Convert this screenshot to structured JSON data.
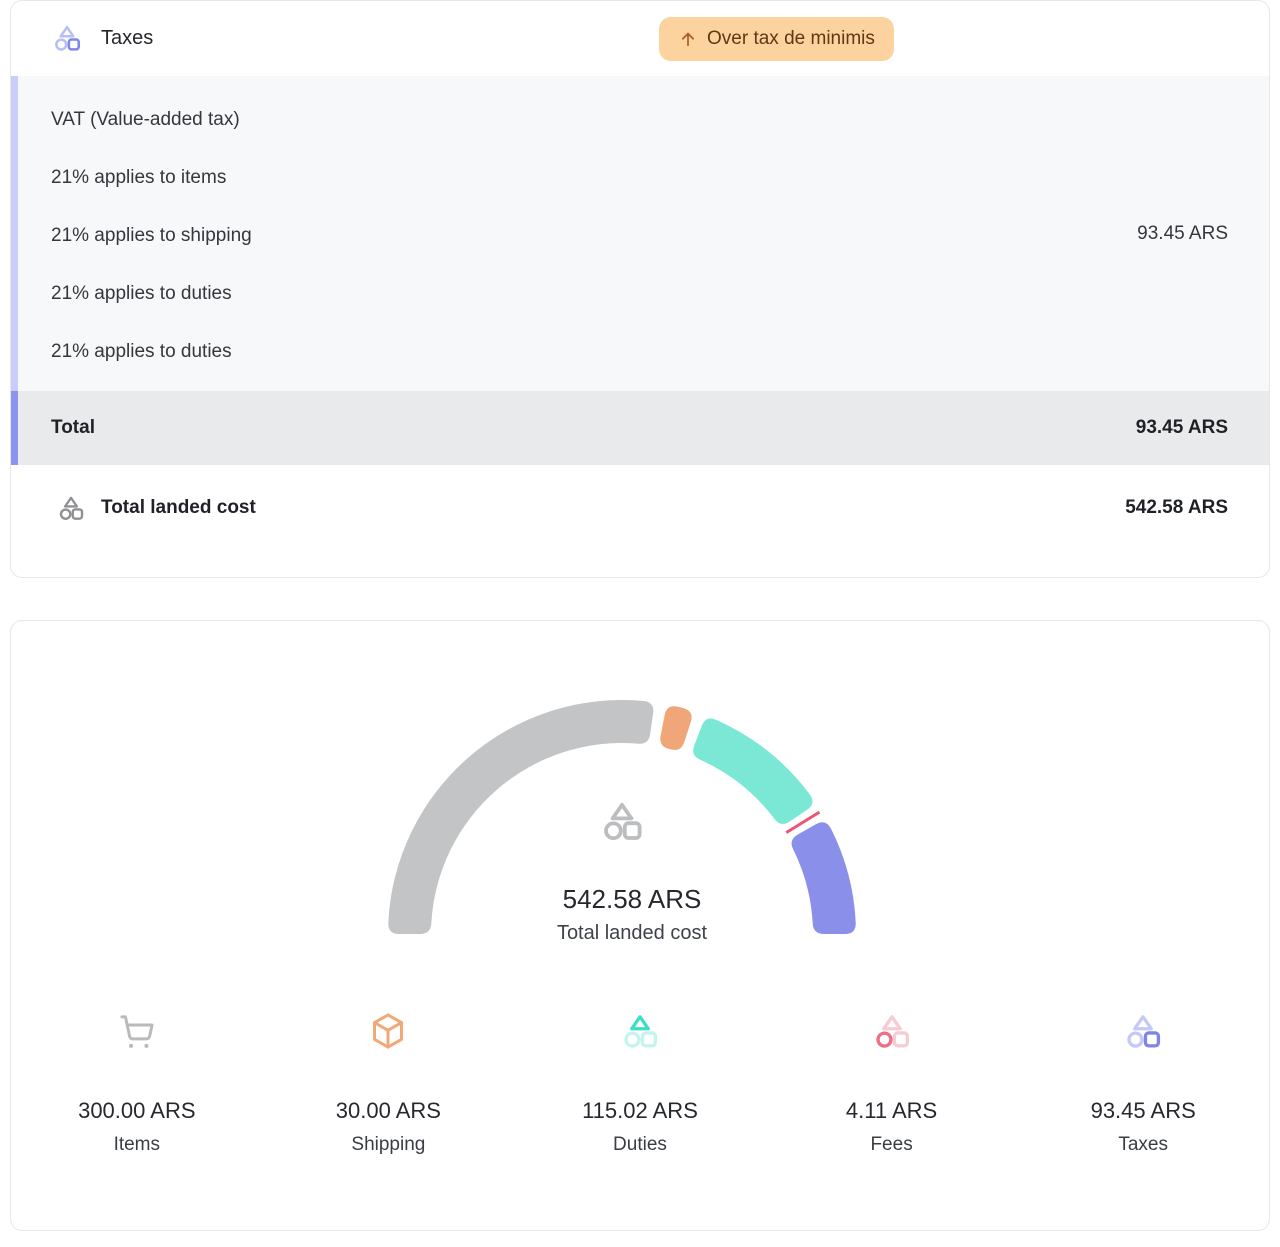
{
  "tax_card": {
    "header": {
      "title": "Taxes",
      "badge_label": "Over tax de minimis"
    },
    "vat": {
      "rows": [
        "VAT (Value-added tax)",
        "21% applies to items",
        "21% applies to shipping",
        "21% applies to duties",
        "21% applies to duties"
      ],
      "amount": "93.45 ARS"
    },
    "total": {
      "label": "Total",
      "amount": "93.45 ARS"
    },
    "landed": {
      "label": "Total landed cost",
      "amount": "542.58 ARS"
    }
  },
  "summary_card": {
    "center_value": "542.58 ARS",
    "center_label": "Total landed cost",
    "stats": [
      {
        "value": "300.00 ARS",
        "label": "Items"
      },
      {
        "value": "30.00 ARS",
        "label": "Shipping"
      },
      {
        "value": "115.02 ARS",
        "label": "Duties"
      },
      {
        "value": "4.11 ARS",
        "label": "Fees"
      },
      {
        "value": "93.45 ARS",
        "label": "Taxes"
      }
    ]
  },
  "chart_data": {
    "type": "gauge-donut",
    "title": "542.58 ARS",
    "subtitle": "Total landed cost",
    "unit": "ARS",
    "total": 542.58,
    "start_angle_deg": 180,
    "end_angle_deg": 0,
    "segments": [
      {
        "name": "Items",
        "value": 300.0,
        "color": "#c3c4c6"
      },
      {
        "name": "Shipping",
        "value": 30.0,
        "color": "#f0a678"
      },
      {
        "name": "Duties",
        "value": 115.02,
        "color": "#7be8d6"
      },
      {
        "name": "Fees",
        "value": 4.11,
        "color": "#ee5474"
      },
      {
        "name": "Taxes",
        "value": 93.45,
        "color": "#8a90ea"
      }
    ]
  },
  "colors": {
    "badge_bg": "#fcd29e",
    "badge_text": "#5e3911",
    "vat_strip": "#c9cdf9",
    "total_strip": "#8d94f0",
    "vat_bg": "#f7f8fa",
    "total_bg": "#e9eaeb"
  },
  "icon_colors": {
    "header_taxes": {
      "triangle": "#b9bef6",
      "circle": "#b9bef6",
      "square": "#7f87e9"
    },
    "landed_cost": {
      "triangle": "#8f9094",
      "circle": "#8f9094",
      "square": "#8f9094"
    },
    "gauge_center": {
      "triangle": "#bcbdbf",
      "circle": "#bcbdbf",
      "square": "#bcbdbf"
    },
    "items": {
      "stroke": "#b9babc"
    },
    "shipping": {
      "stroke": "#f2a876"
    },
    "duties": {
      "triangle": "#3eddc8",
      "circle": "#c5f4ed",
      "square": "#c5f4ed"
    },
    "fees": {
      "triangle": "#f7cbd3",
      "circle": "#ee7086",
      "square": "#f7cbd3"
    },
    "taxes": {
      "triangle": "#c5c9f8",
      "circle": "#c5c9f8",
      "square": "#7d85e9"
    },
    "badge_arrow": {
      "stroke": "#aa5f2b"
    }
  }
}
